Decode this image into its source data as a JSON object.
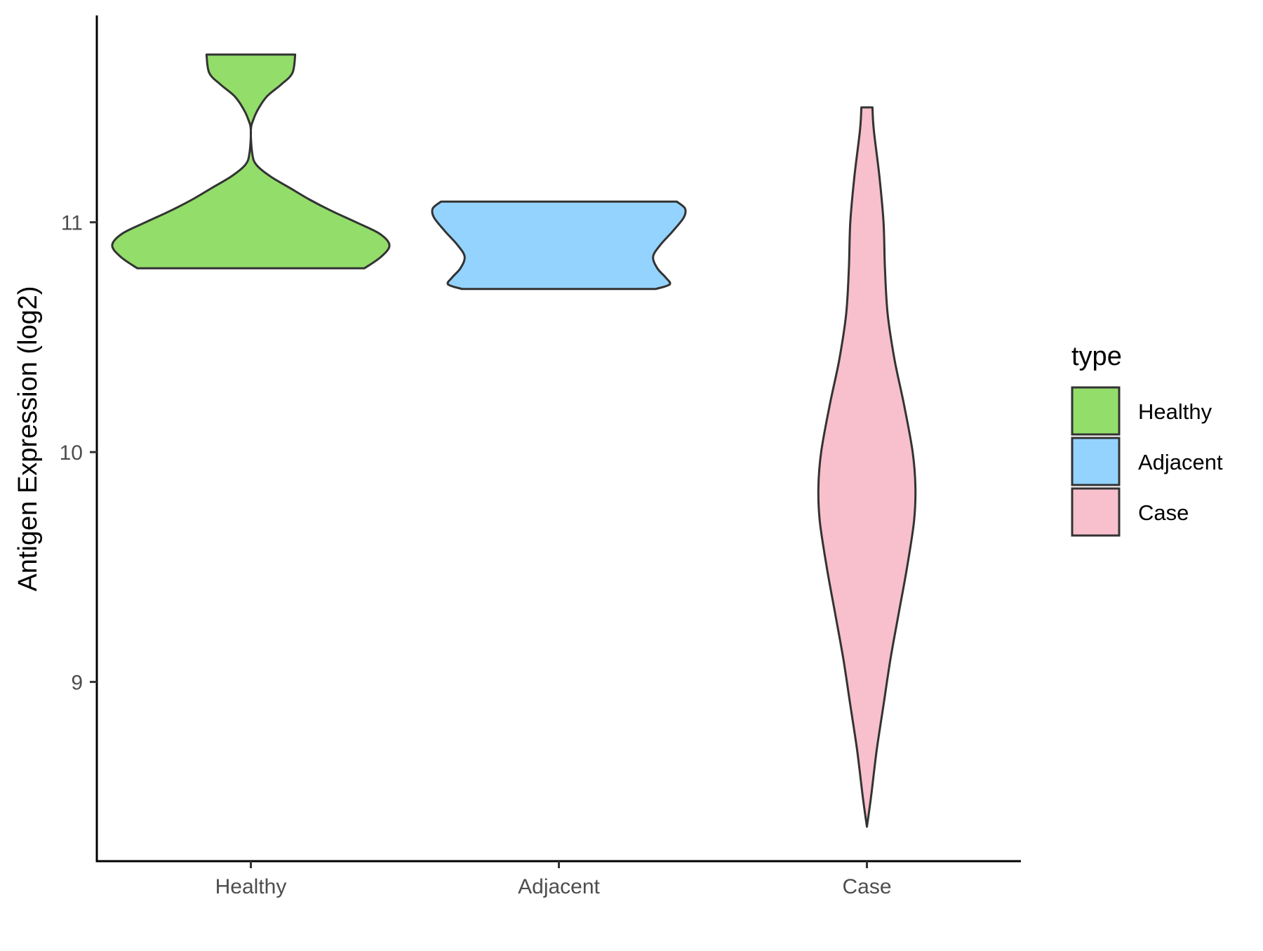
{
  "chart_data": {
    "type": "violin",
    "title": "",
    "xlabel": "",
    "ylabel": "Antigen Expression (log2)",
    "categories": [
      "Healthy",
      "Adjacent",
      "Case"
    ],
    "y_ticks": [
      9,
      10,
      11
    ],
    "ylim": [
      8.22,
      11.9
    ],
    "grid": false,
    "legend": {
      "title": "type",
      "position": "right",
      "entries": [
        "Healthy",
        "Adjacent",
        "Case"
      ]
    },
    "series": [
      {
        "category": "Healthy",
        "color": "#93DD6A",
        "density": [
          [
            10.8,
            0.82
          ],
          [
            10.85,
            0.94
          ],
          [
            10.9,
            1.0
          ],
          [
            10.95,
            0.93
          ],
          [
            11.0,
            0.76
          ],
          [
            11.05,
            0.58
          ],
          [
            11.1,
            0.42
          ],
          [
            11.15,
            0.28
          ],
          [
            11.2,
            0.14
          ],
          [
            11.25,
            0.04
          ],
          [
            11.3,
            0.01
          ],
          [
            11.4,
            0.0
          ],
          [
            11.45,
            0.02
          ],
          [
            11.5,
            0.06
          ],
          [
            11.55,
            0.12
          ],
          [
            11.6,
            0.22
          ],
          [
            11.65,
            0.3
          ],
          [
            11.73,
            0.32
          ]
        ]
      },
      {
        "category": "Adjacent",
        "color": "#93D3FD",
        "density": [
          [
            10.71,
            0.7
          ],
          [
            10.73,
            0.8
          ],
          [
            10.76,
            0.77
          ],
          [
            10.8,
            0.71
          ],
          [
            10.85,
            0.68
          ],
          [
            10.9,
            0.73
          ],
          [
            10.96,
            0.82
          ],
          [
            11.02,
            0.9
          ],
          [
            11.06,
            0.91
          ],
          [
            11.09,
            0.85
          ]
        ]
      },
      {
        "category": "Case",
        "color": "#F7C0CC",
        "density": [
          [
            8.37,
            0.0
          ],
          [
            8.5,
            0.03
          ],
          [
            8.7,
            0.07
          ],
          [
            8.9,
            0.12
          ],
          [
            9.1,
            0.17
          ],
          [
            9.3,
            0.23
          ],
          [
            9.5,
            0.29
          ],
          [
            9.7,
            0.34
          ],
          [
            9.85,
            0.35
          ],
          [
            10.0,
            0.33
          ],
          [
            10.2,
            0.27
          ],
          [
            10.4,
            0.2
          ],
          [
            10.6,
            0.15
          ],
          [
            10.8,
            0.13
          ],
          [
            11.0,
            0.12
          ],
          [
            11.2,
            0.09
          ],
          [
            11.4,
            0.05
          ],
          [
            11.5,
            0.04
          ]
        ]
      }
    ]
  }
}
